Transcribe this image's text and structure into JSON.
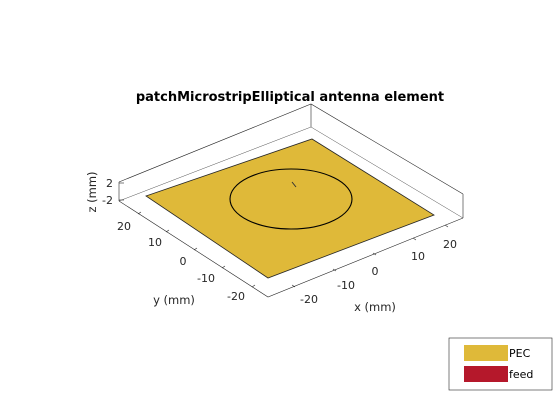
{
  "figure": {
    "title": "patchMicrostripElliptical antenna element",
    "axes": {
      "x_label": "x (mm)",
      "y_label": "y (mm)",
      "z_label": "z (mm)",
      "x_ticks": [
        "-20",
        "-10",
        "0",
        "10",
        "20"
      ],
      "y_ticks": [
        "20",
        "10",
        "0",
        "-10",
        "-20"
      ],
      "z_ticks": [
        "2",
        "-2"
      ]
    },
    "legend": {
      "placement": "bottom-right",
      "items": [
        {
          "label": "PEC",
          "color": "#dfb939"
        },
        {
          "label": "feed",
          "color": "#b5182b"
        }
      ]
    },
    "colors": {
      "ground_plane": "#dfb939",
      "patch_outline": "#000000",
      "box_lines": "#262626"
    }
  }
}
